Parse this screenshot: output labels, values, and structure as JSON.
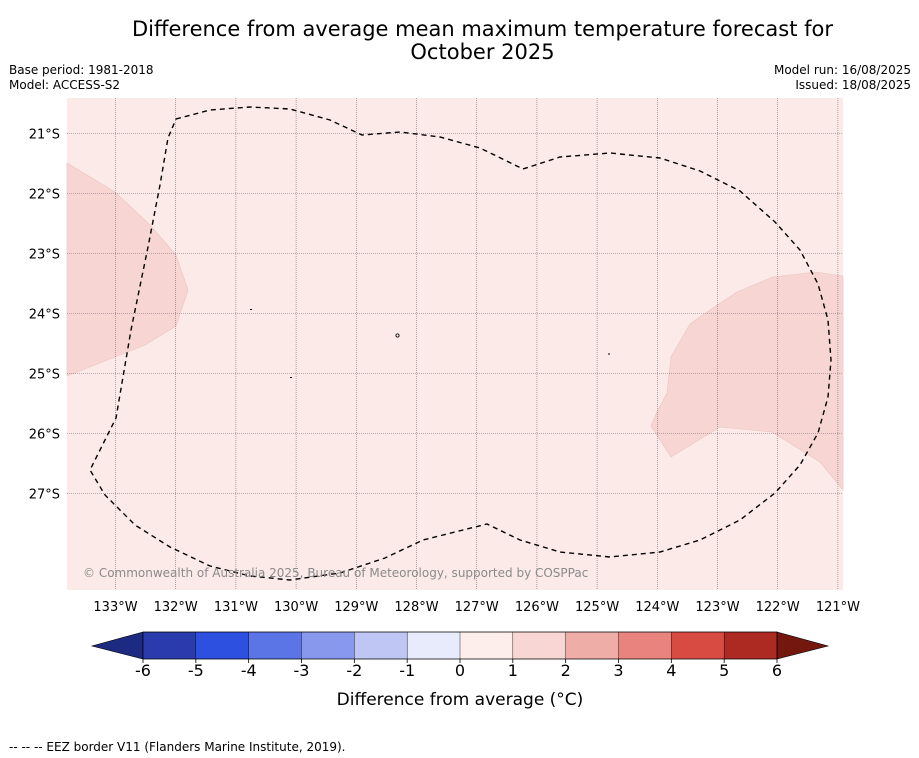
{
  "title_line1": "Difference from average mean maximum temperature forecast for",
  "title_line2": "October 2025",
  "meta_left": {
    "base_period": "Base period: 1981-2018",
    "model": "Model: ACCESS-S2"
  },
  "meta_right": {
    "model_run": "Model run: 16/08/2025",
    "issued": "Issued: 18/08/2025"
  },
  "copyright": "© Commonwealth of Australia 2025, Bureau of Meteorology, supported by COSPPac",
  "footnote": "-- -- -- EEZ border V11 (Flanders Marine Institute, 2019).",
  "map": {
    "lat_labels": [
      "21°S",
      "22°S",
      "23°S",
      "24°S",
      "25°S",
      "26°S",
      "27°S"
    ],
    "lon_labels": [
      "133°W",
      "132°W",
      "131°W",
      "130°W",
      "129°W",
      "128°W",
      "127°W",
      "126°W",
      "125°W",
      "124°W",
      "123°W",
      "122°W",
      "121°W"
    ],
    "background_color": "#fbeae8",
    "anomaly_color": "#f6d5d2",
    "eez_color": "#000000"
  },
  "colorbar": {
    "label": "Difference from average (°C)",
    "ticks": [
      "-6",
      "-5",
      "-4",
      "-3",
      "-2",
      "-1",
      "0",
      "1",
      "2",
      "3",
      "4",
      "5",
      "6"
    ],
    "colors": [
      "#2a3cad",
      "#2e50e0",
      "#5b75e6",
      "#8898ec",
      "#bfc6f4",
      "#e8ebfc",
      "#fdeeeb",
      "#f8d6d3",
      "#efada8",
      "#e8847d",
      "#d84b42",
      "#ac2a22"
    ],
    "under_color": "#1d2a82",
    "over_color": "#74170f"
  }
}
